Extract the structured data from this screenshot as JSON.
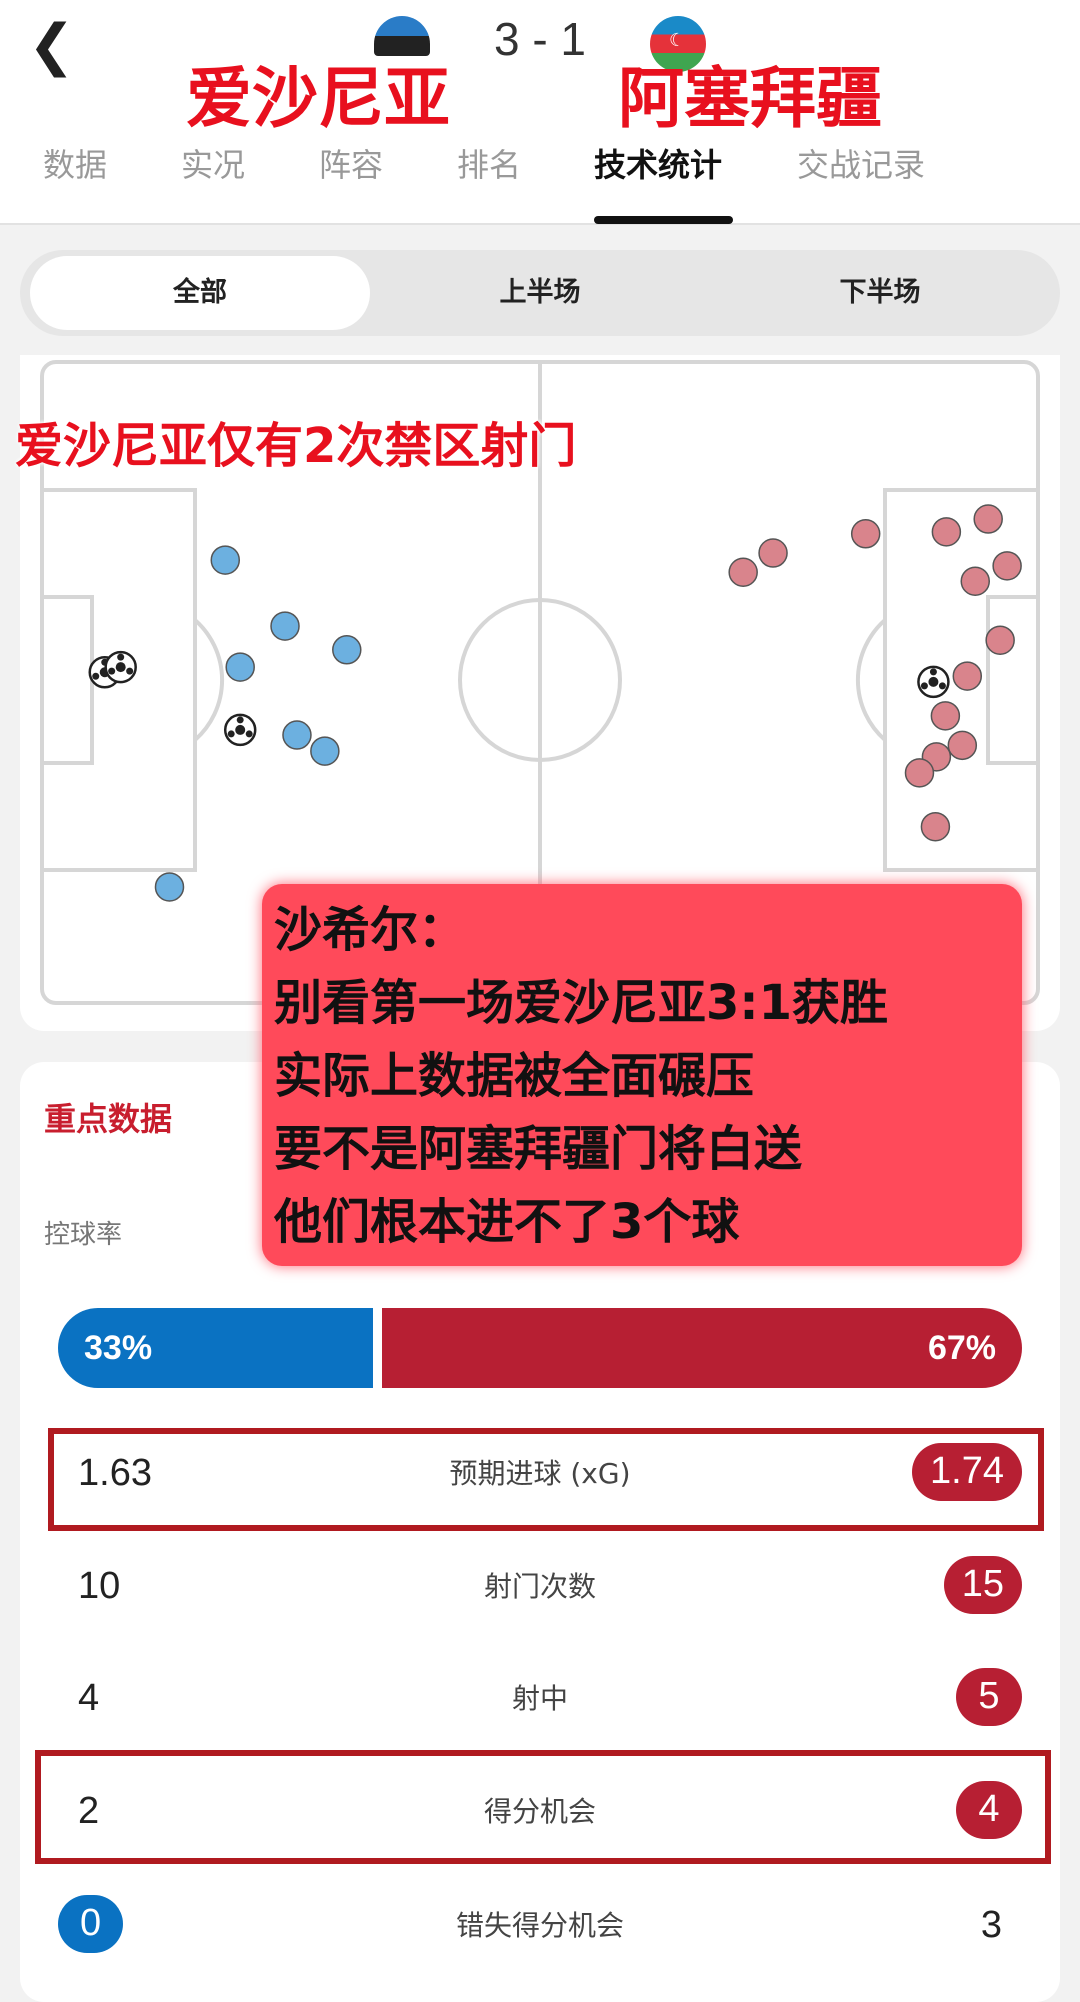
{
  "header": {
    "back_icon": "chevron-left-icon",
    "score": "3 - 1",
    "home_team": "爱沙尼亚",
    "away_team": "阿塞拜疆",
    "tabs": [
      {
        "label": "数据",
        "active": false
      },
      {
        "label": "实况",
        "active": false
      },
      {
        "label": "阵容",
        "active": false
      },
      {
        "label": "排名",
        "active": false
      },
      {
        "label": "技术统计",
        "active": true
      },
      {
        "label": "交战记录",
        "active": false
      }
    ]
  },
  "period_filter": {
    "options": [
      "全部",
      "上半场",
      "下半场"
    ],
    "selected": "全部"
  },
  "shot_map": {
    "annotation": "爱沙尼亚仅有2次禁区射门",
    "colors": {
      "home": "#6cb0e0",
      "away": "#d9848c"
    },
    "home_shots": [
      [
        18.4,
        30.9
      ],
      [
        24.4,
        41.2
      ],
      [
        19.9,
        47.6
      ],
      [
        30.6,
        44.9
      ],
      [
        25.6,
        58.2
      ],
      [
        28.4,
        60.7
      ],
      [
        12.8,
        81.9
      ]
    ],
    "home_goals": [
      [
        6.3,
        48.4
      ],
      [
        7.9,
        47.6
      ],
      [
        19.9,
        57.4
      ]
    ],
    "away_shots": [
      [
        70.4,
        32.8
      ],
      [
        73.4,
        29.8
      ],
      [
        82.7,
        26.8
      ],
      [
        90.8,
        26.5
      ],
      [
        95.0,
        24.5
      ],
      [
        96.9,
        31.8
      ],
      [
        93.7,
        34.2
      ],
      [
        96.2,
        43.4
      ],
      [
        92.9,
        49.0
      ],
      [
        90.7,
        55.2
      ],
      [
        92.4,
        59.8
      ],
      [
        89.8,
        61.6
      ],
      [
        88.1,
        64.1
      ],
      [
        89.7,
        72.5
      ]
    ],
    "away_goals": [
      [
        89.5,
        49.9
      ]
    ]
  },
  "stats": {
    "section_title": "重点数据",
    "possession_label": "控球率",
    "possession": {
      "home": "33%",
      "away": "67%",
      "home_value": 33,
      "away_value": 67
    },
    "rows": [
      {
        "label": "预期进球 (xG)",
        "home": "1.63",
        "away": "1.74",
        "leader": "away"
      },
      {
        "label": "射门次数",
        "home": "10",
        "away": "15",
        "leader": "away"
      },
      {
        "label": "射中",
        "home": "4",
        "away": "5",
        "leader": "away"
      },
      {
        "label": "得分机会",
        "home": "2",
        "away": "4",
        "leader": "away"
      },
      {
        "label": "错失得分机会",
        "home": "0",
        "away": "3",
        "leader": "home"
      }
    ],
    "colors": {
      "home": "#0a72c2",
      "away": "#b71f33"
    }
  },
  "overlay_comment": {
    "lines": [
      "沙希尔：",
      "别看第一场爱沙尼亚3:1获胜",
      "实际上数据被全面碾压",
      "要不是阿塞拜疆门将白送",
      "他们根本进不了3个球"
    ]
  }
}
